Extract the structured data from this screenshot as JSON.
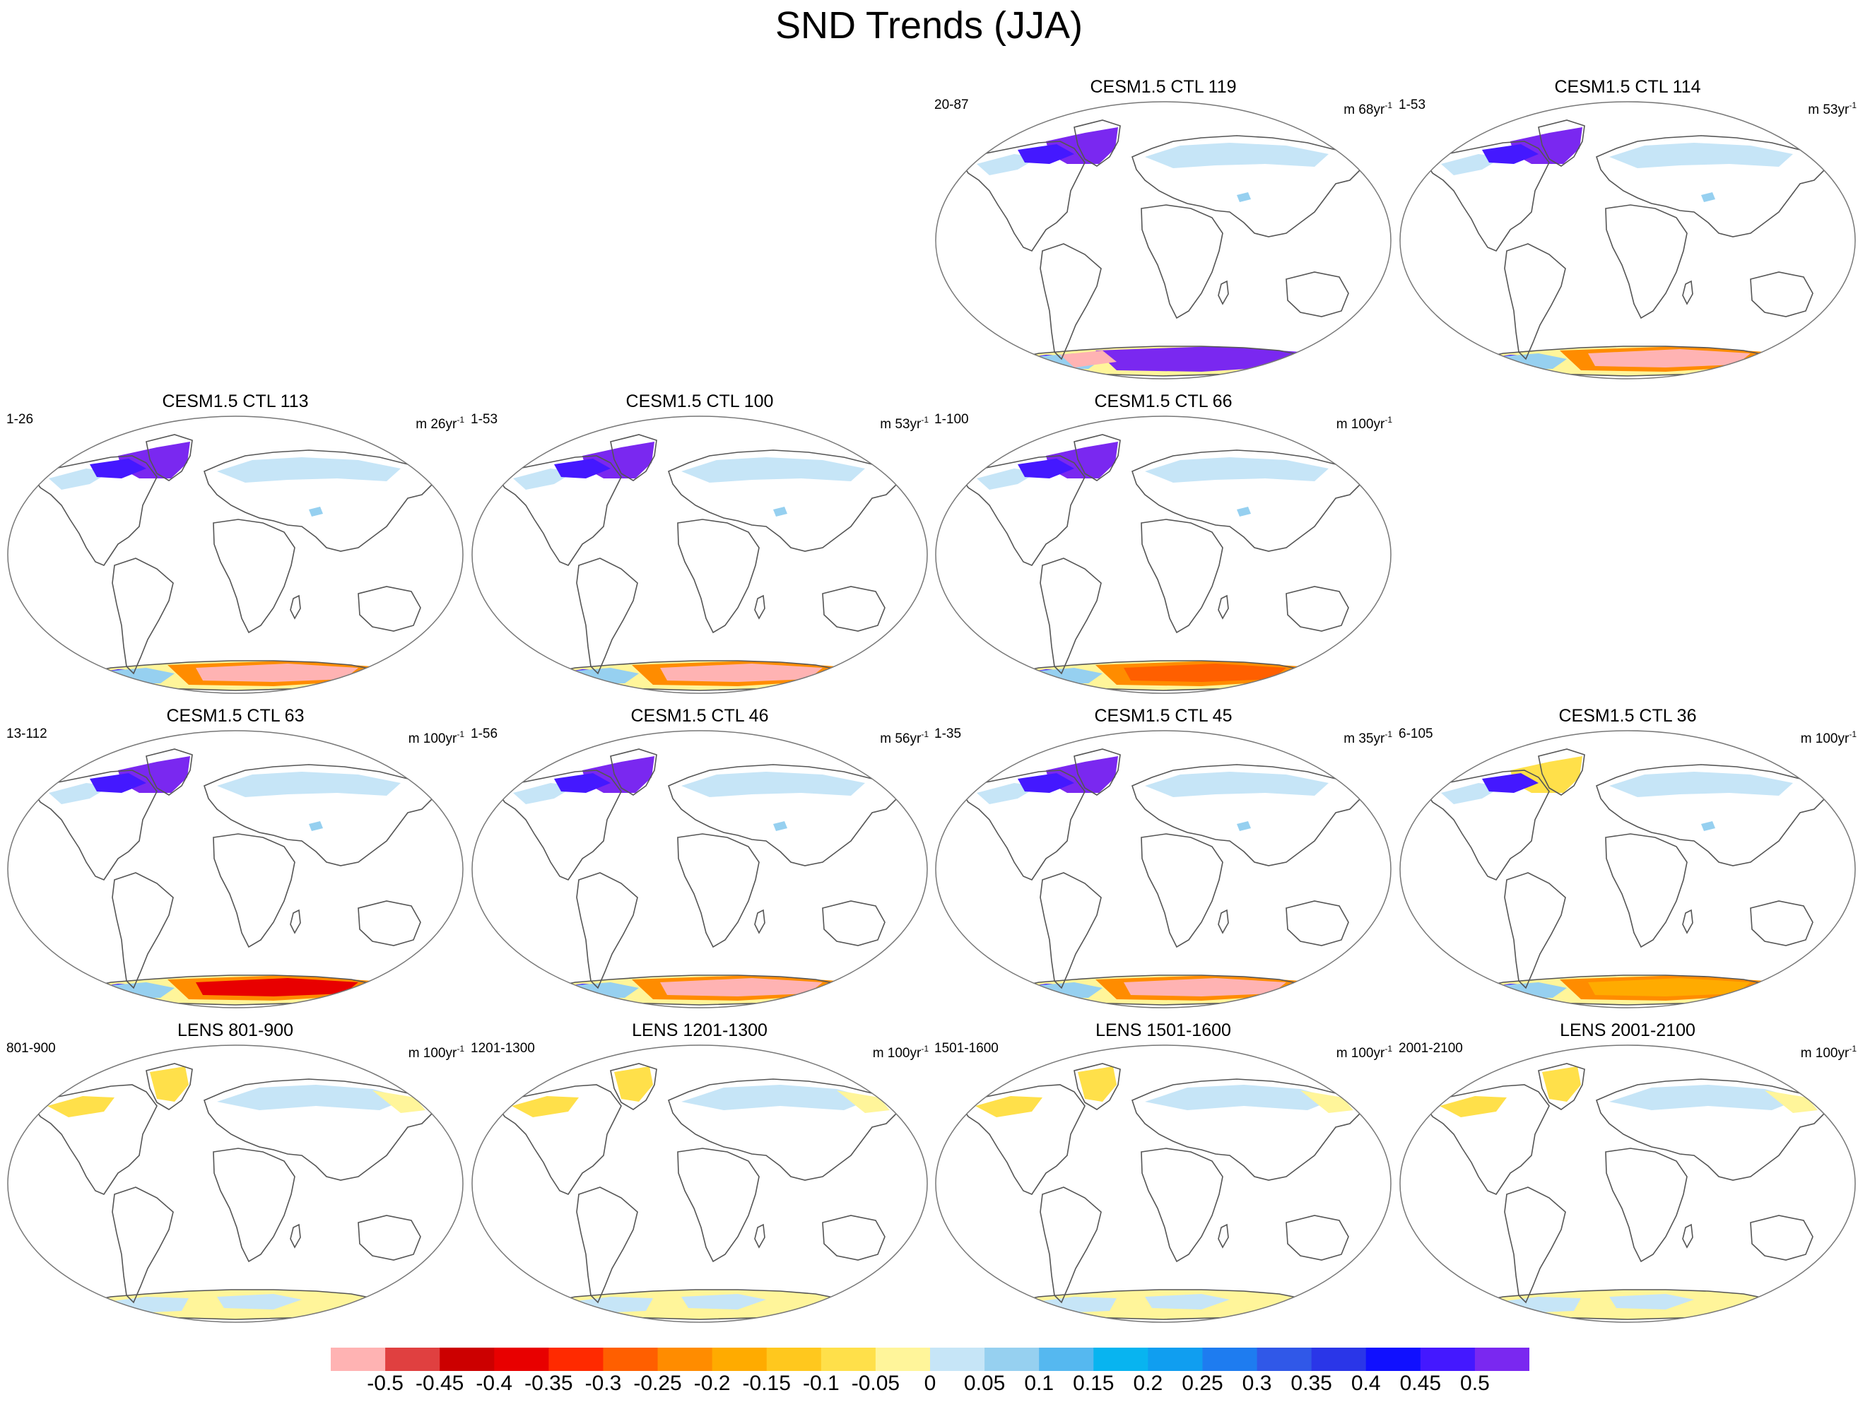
{
  "title": "SND Trends (JJA)",
  "panels": [
    {
      "title": "CESM1.5 CTL 119",
      "range": "20-87",
      "units": "m 68yr",
      "unit_exp": "-1",
      "pattern": "purple"
    },
    {
      "title": "CESM1.5 CTL 114",
      "range": "1-53",
      "units": "m 53yr",
      "unit_exp": "-1",
      "pattern": "pink"
    },
    {
      "title": "CESM1.5 CTL 113",
      "range": "1-26",
      "units": "m 26yr",
      "unit_exp": "-1",
      "pattern": "pink"
    },
    {
      "title": "CESM1.5 CTL 100",
      "range": "1-53",
      "units": "m 53yr",
      "unit_exp": "-1",
      "pattern": "pink"
    },
    {
      "title": "CESM1.5 CTL 66",
      "range": "1-100",
      "units": "m 100yr",
      "unit_exp": "-1",
      "pattern": "redorange"
    },
    {
      "title": "CESM1.5 CTL 63",
      "range": "13-112",
      "units": "m 100yr",
      "unit_exp": "-1",
      "pattern": "red"
    },
    {
      "title": "CESM1.5 CTL 46",
      "range": "1-56",
      "units": "m 56yr",
      "unit_exp": "-1",
      "pattern": "pink"
    },
    {
      "title": "CESM1.5 CTL 45",
      "range": "1-35",
      "units": "m 35yr",
      "unit_exp": "-1",
      "pattern": "pink"
    },
    {
      "title": "CESM1.5 CTL 36",
      "range": "6-105",
      "units": "m 100yr",
      "unit_exp": "-1",
      "pattern": "orange"
    },
    {
      "title": "LENS 801-900",
      "range": "801-900",
      "units": "m 100yr",
      "unit_exp": "-1",
      "pattern": "lens"
    },
    {
      "title": "LENS 1201-1300",
      "range": "1201-1300",
      "units": "m 100yr",
      "unit_exp": "-1",
      "pattern": "lens"
    },
    {
      "title": "LENS 1501-1600",
      "range": "1501-1600",
      "units": "m 100yr",
      "unit_exp": "-1",
      "pattern": "lens"
    },
    {
      "title": "LENS 2001-2100",
      "range": "2001-2100",
      "units": "m 100yr",
      "unit_exp": "-1",
      "pattern": "lens"
    }
  ],
  "colorbar": {
    "labels": [
      "-0.5",
      "-0.45",
      "-0.4",
      "-0.35",
      "-0.3",
      "-0.25",
      "-0.2",
      "-0.15",
      "-0.1",
      "-0.05",
      "0",
      "0.05",
      "0.1",
      "0.15",
      "0.2",
      "0.25",
      "0.3",
      "0.35",
      "0.4",
      "0.45",
      "0.5"
    ],
    "colors": [
      "#ffb3b3",
      "#e04040",
      "#cc0000",
      "#e80000",
      "#ff2a00",
      "#ff5f00",
      "#ff8c00",
      "#ffab00",
      "#ffc81e",
      "#ffe04a",
      "#fff59a",
      "#c6e5f7",
      "#96d0f0",
      "#55b8f0",
      "#08b4f0",
      "#109ef0",
      "#1e7cf0",
      "#3058e8",
      "#2a36e8",
      "#1010ff",
      "#4418ff",
      "#7a28f0"
    ]
  }
}
